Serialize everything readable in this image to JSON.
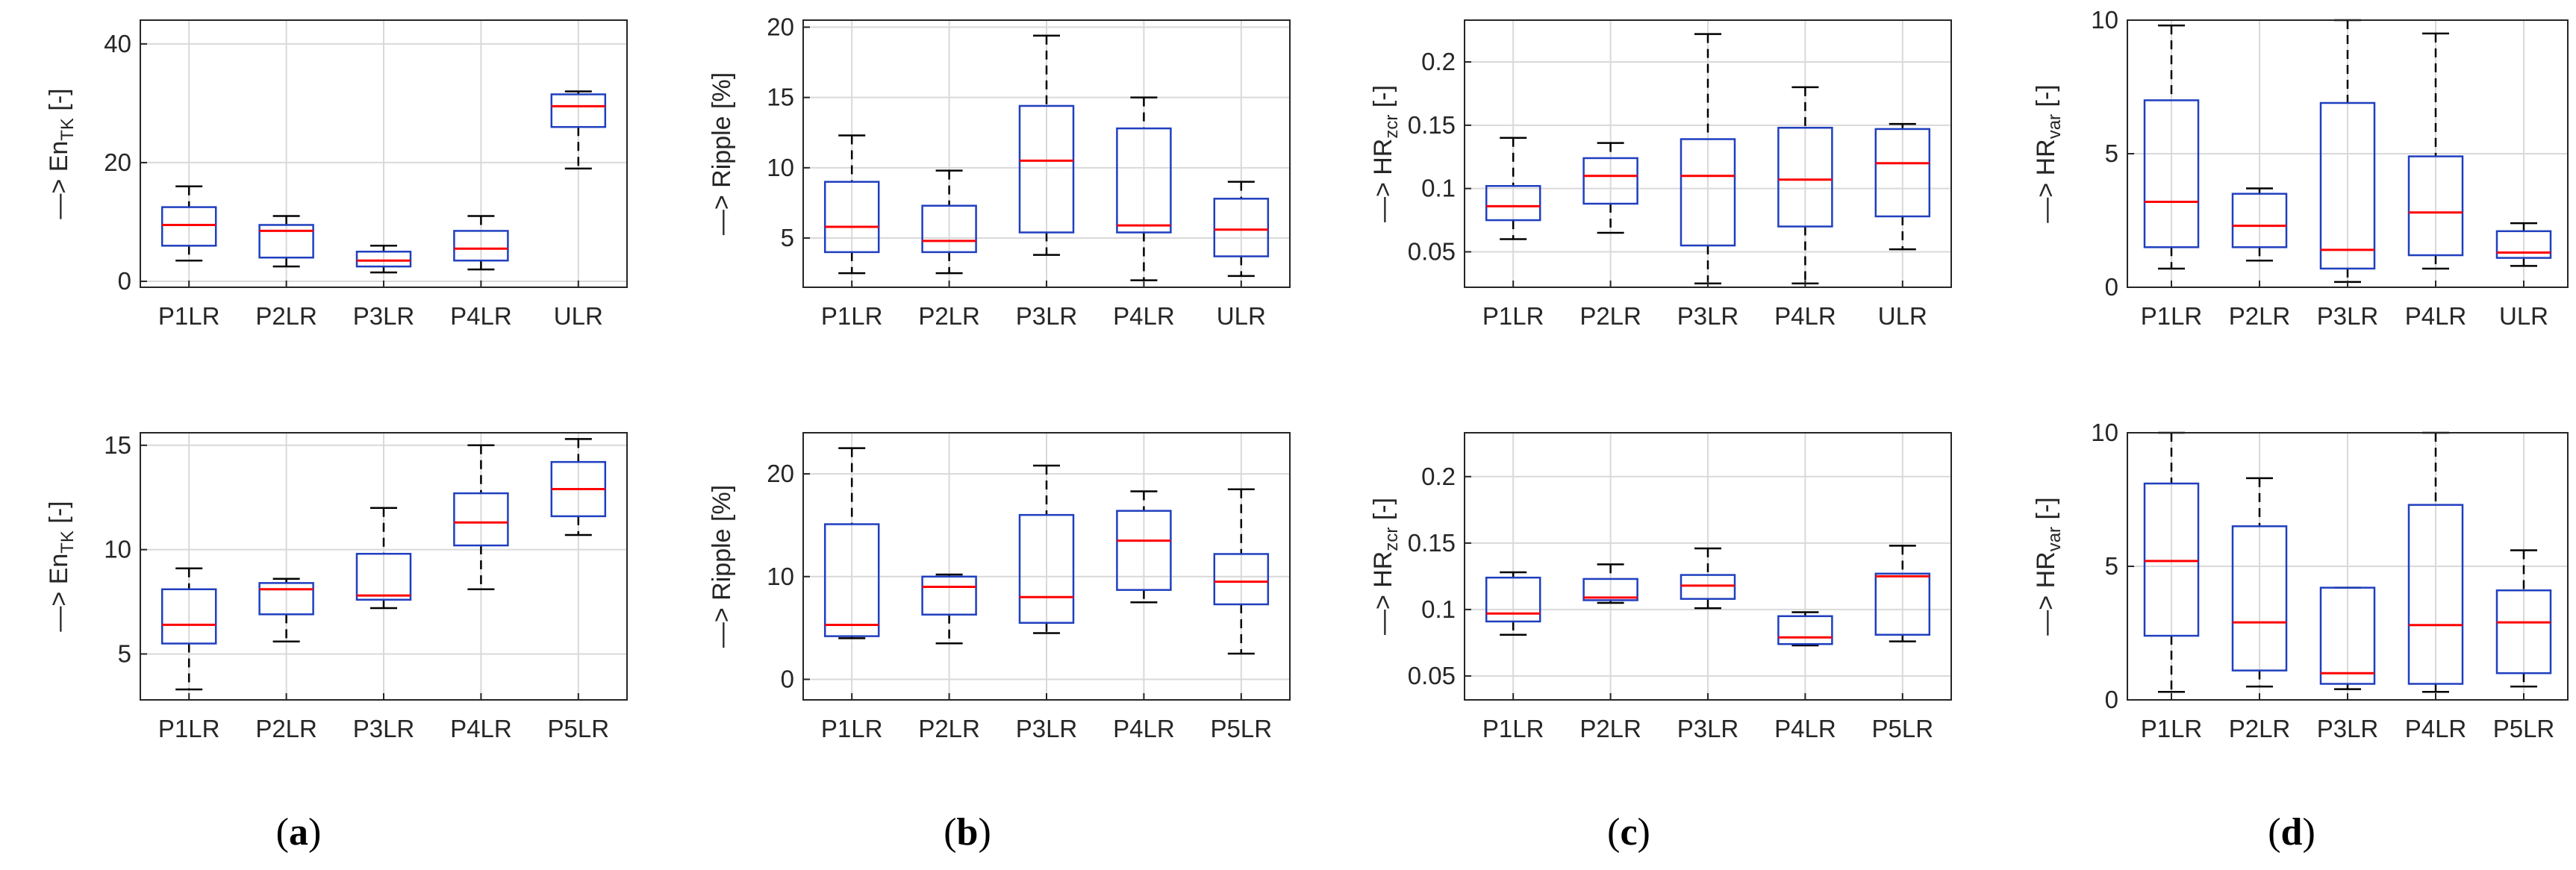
{
  "panel_labels": [
    {
      "open": "(",
      "letter": "a",
      "close": ")"
    },
    {
      "open": "(",
      "letter": "b",
      "close": ")"
    },
    {
      "open": "(",
      "letter": "c",
      "close": ")"
    },
    {
      "open": "(",
      "letter": "d",
      "close": ")"
    }
  ],
  "colors": {
    "box": "#1f3fbf",
    "median": "#ff0000",
    "whisker": "#000000",
    "grid": "#d9d9d9",
    "axis": "#262626"
  },
  "chart_data": [
    {
      "type": "box",
      "title": "",
      "ylabel": {
        "prefix": "—> En",
        "sub": "TK",
        "suffix": " [-]"
      },
      "categories": [
        "P1LR",
        "P2LR",
        "P3LR",
        "P4LR",
        "ULR"
      ],
      "ylim": [
        -1,
        44
      ],
      "yticks": [
        0,
        20,
        40
      ],
      "yticklabels": [
        "0",
        "20",
        "40"
      ],
      "grid": true,
      "boxes": [
        {
          "min": 3.5,
          "q1": 6,
          "median": 9.5,
          "q3": 12.5,
          "max": 16
        },
        {
          "min": 2.5,
          "q1": 4,
          "median": 8.5,
          "q3": 9.5,
          "max": 11
        },
        {
          "min": 1.5,
          "q1": 2.5,
          "median": 3.5,
          "q3": 5,
          "max": 6
        },
        {
          "min": 2,
          "q1": 3.5,
          "median": 5.5,
          "q3": 8.5,
          "max": 11
        },
        {
          "min": 19,
          "q1": 26,
          "median": 29.5,
          "q3": 31.5,
          "max": 32
        }
      ]
    },
    {
      "type": "box",
      "title": "",
      "ylabel": {
        "prefix": "—> Ripple [%]",
        "sub": "",
        "suffix": ""
      },
      "categories": [
        "P1LR",
        "P2LR",
        "P3LR",
        "P4LR",
        "ULR"
      ],
      "ylim": [
        1.5,
        20.5
      ],
      "yticks": [
        5,
        10,
        15,
        20
      ],
      "yticklabels": [
        "5",
        "10",
        "15",
        "20"
      ],
      "grid": true,
      "boxes": [
        {
          "min": 2.5,
          "q1": 4,
          "median": 5.8,
          "q3": 9,
          "max": 12.3
        },
        {
          "min": 2.5,
          "q1": 4,
          "median": 4.8,
          "q3": 7.3,
          "max": 9.8
        },
        {
          "min": 3.8,
          "q1": 5.4,
          "median": 10.5,
          "q3": 14.4,
          "max": 19.4
        },
        {
          "min": 2,
          "q1": 5.4,
          "median": 5.9,
          "q3": 12.8,
          "max": 15
        },
        {
          "min": 2.3,
          "q1": 3.7,
          "median": 5.6,
          "q3": 7.8,
          "max": 9
        }
      ]
    },
    {
      "type": "box",
      "title": "",
      "ylabel": {
        "prefix": "—> HR",
        "sub": "zcr",
        "suffix": " [-]"
      },
      "categories": [
        "P1LR",
        "P2LR",
        "P3LR",
        "P4LR",
        "ULR"
      ],
      "ylim": [
        0.022,
        0.233
      ],
      "yticks": [
        0.05,
        0.1,
        0.15,
        0.2
      ],
      "yticklabels": [
        "0.05",
        "0.1",
        "0.15",
        "0.2"
      ],
      "grid": true,
      "boxes": [
        {
          "min": 0.06,
          "q1": 0.075,
          "median": 0.086,
          "q3": 0.102,
          "max": 0.14
        },
        {
          "min": 0.065,
          "q1": 0.088,
          "median": 0.11,
          "q3": 0.124,
          "max": 0.136
        },
        {
          "min": 0.025,
          "q1": 0.055,
          "median": 0.11,
          "q3": 0.139,
          "max": 0.222
        },
        {
          "min": 0.025,
          "q1": 0.07,
          "median": 0.107,
          "q3": 0.148,
          "max": 0.18
        },
        {
          "min": 0.052,
          "q1": 0.078,
          "median": 0.12,
          "q3": 0.147,
          "max": 0.151
        }
      ]
    },
    {
      "type": "box",
      "title": "",
      "ylabel": {
        "prefix": "—> HR",
        "sub": "var",
        "suffix": " [-]"
      },
      "categories": [
        "P1LR",
        "P2LR",
        "P3LR",
        "P4LR",
        "ULR"
      ],
      "ylim": [
        0,
        10
      ],
      "yticks": [
        0,
        5,
        10
      ],
      "yticklabels": [
        "0",
        "5",
        "10"
      ],
      "grid": true,
      "boxes": [
        {
          "min": 0.7,
          "q1": 1.5,
          "median": 3.2,
          "q3": 7,
          "max": 9.8
        },
        {
          "min": 1,
          "q1": 1.5,
          "median": 2.3,
          "q3": 3.5,
          "max": 3.7
        },
        {
          "min": 0.2,
          "q1": 0.7,
          "median": 1.4,
          "q3": 6.9,
          "max": 10
        },
        {
          "min": 0.7,
          "q1": 1.2,
          "median": 2.8,
          "q3": 4.9,
          "max": 9.5
        },
        {
          "min": 0.8,
          "q1": 1.1,
          "median": 1.3,
          "q3": 2.1,
          "max": 2.4
        }
      ]
    },
    {
      "type": "box",
      "title": "",
      "ylabel": {
        "prefix": "—> En",
        "sub": "TK",
        "suffix": " [-]"
      },
      "categories": [
        "P1LR",
        "P2LR",
        "P3LR",
        "P4LR",
        "P5LR"
      ],
      "ylim": [
        2.8,
        15.6
      ],
      "yticks": [
        5,
        10,
        15
      ],
      "yticklabels": [
        "5",
        "10",
        "15"
      ],
      "grid": true,
      "boxes": [
        {
          "min": 3.3,
          "q1": 5.5,
          "median": 6.4,
          "q3": 8.1,
          "max": 9.1
        },
        {
          "min": 5.6,
          "q1": 6.9,
          "median": 8.1,
          "q3": 8.4,
          "max": 8.6
        },
        {
          "min": 7.2,
          "q1": 7.6,
          "median": 7.8,
          "q3": 9.8,
          "max": 12
        },
        {
          "min": 8.1,
          "q1": 10.2,
          "median": 11.3,
          "q3": 12.7,
          "max": 15
        },
        {
          "min": 10.7,
          "q1": 11.6,
          "median": 12.9,
          "q3": 14.2,
          "max": 15.3
        }
      ]
    },
    {
      "type": "box",
      "title": "",
      "ylabel": {
        "prefix": "—> Ripple [%]",
        "sub": "",
        "suffix": ""
      },
      "categories": [
        "P1LR",
        "P2LR",
        "P3LR",
        "P4LR",
        "P5LR"
      ],
      "ylim": [
        -2,
        24
      ],
      "yticks": [
        0,
        10,
        20
      ],
      "yticklabels": [
        "0",
        "10",
        "20"
      ],
      "grid": true,
      "boxes": [
        {
          "min": 4,
          "q1": 4.2,
          "median": 5.3,
          "q3": 15.1,
          "max": 22.5
        },
        {
          "min": 3.5,
          "q1": 6.3,
          "median": 9,
          "q3": 10,
          "max": 10.2
        },
        {
          "min": 4.5,
          "q1": 5.5,
          "median": 8,
          "q3": 16,
          "max": 20.8
        },
        {
          "min": 7.5,
          "q1": 8.7,
          "median": 13.5,
          "q3": 16.4,
          "max": 18.3
        },
        {
          "min": 2.5,
          "q1": 7.3,
          "median": 9.5,
          "q3": 12.2,
          "max": 18.5
        }
      ]
    },
    {
      "type": "box",
      "title": "",
      "ylabel": {
        "prefix": "—> HR",
        "sub": "zcr",
        "suffix": " [-]"
      },
      "categories": [
        "P1LR",
        "P2LR",
        "P3LR",
        "P4LR",
        "P5LR"
      ],
      "ylim": [
        0.032,
        0.233
      ],
      "yticks": [
        0.05,
        0.1,
        0.15,
        0.2
      ],
      "yticklabels": [
        "0.05",
        "0.1",
        "0.15",
        "0.2"
      ],
      "grid": true,
      "boxes": [
        {
          "min": 0.081,
          "q1": 0.091,
          "median": 0.097,
          "q3": 0.124,
          "max": 0.128
        },
        {
          "min": 0.105,
          "q1": 0.107,
          "median": 0.109,
          "q3": 0.123,
          "max": 0.134
        },
        {
          "min": 0.101,
          "q1": 0.108,
          "median": 0.118,
          "q3": 0.126,
          "max": 0.146
        },
        {
          "min": 0.073,
          "q1": 0.074,
          "median": 0.079,
          "q3": 0.095,
          "max": 0.098
        },
        {
          "min": 0.076,
          "q1": 0.081,
          "median": 0.125,
          "q3": 0.127,
          "max": 0.148
        }
      ]
    },
    {
      "type": "box",
      "title": "",
      "ylabel": {
        "prefix": "—> HR",
        "sub": "var",
        "suffix": " [-]"
      },
      "categories": [
        "P1LR",
        "P2LR",
        "P3LR",
        "P4LR",
        "P5LR"
      ],
      "ylim": [
        0,
        10
      ],
      "yticks": [
        0,
        5,
        10
      ],
      "yticklabels": [
        "0",
        "5",
        "10"
      ],
      "grid": true,
      "boxes": [
        {
          "min": 0.3,
          "q1": 2.4,
          "median": 5.2,
          "q3": 8.1,
          "max": 10
        },
        {
          "min": 0.5,
          "q1": 1.1,
          "median": 2.9,
          "q3": 6.5,
          "max": 8.3
        },
        {
          "min": 0.4,
          "q1": 0.6,
          "median": 1,
          "q3": 4.2,
          "max": 4.2
        },
        {
          "min": 0.3,
          "q1": 0.6,
          "median": 2.8,
          "q3": 7.3,
          "max": 10
        },
        {
          "min": 0.5,
          "q1": 1,
          "median": 2.9,
          "q3": 4.1,
          "max": 5.6
        }
      ]
    }
  ]
}
